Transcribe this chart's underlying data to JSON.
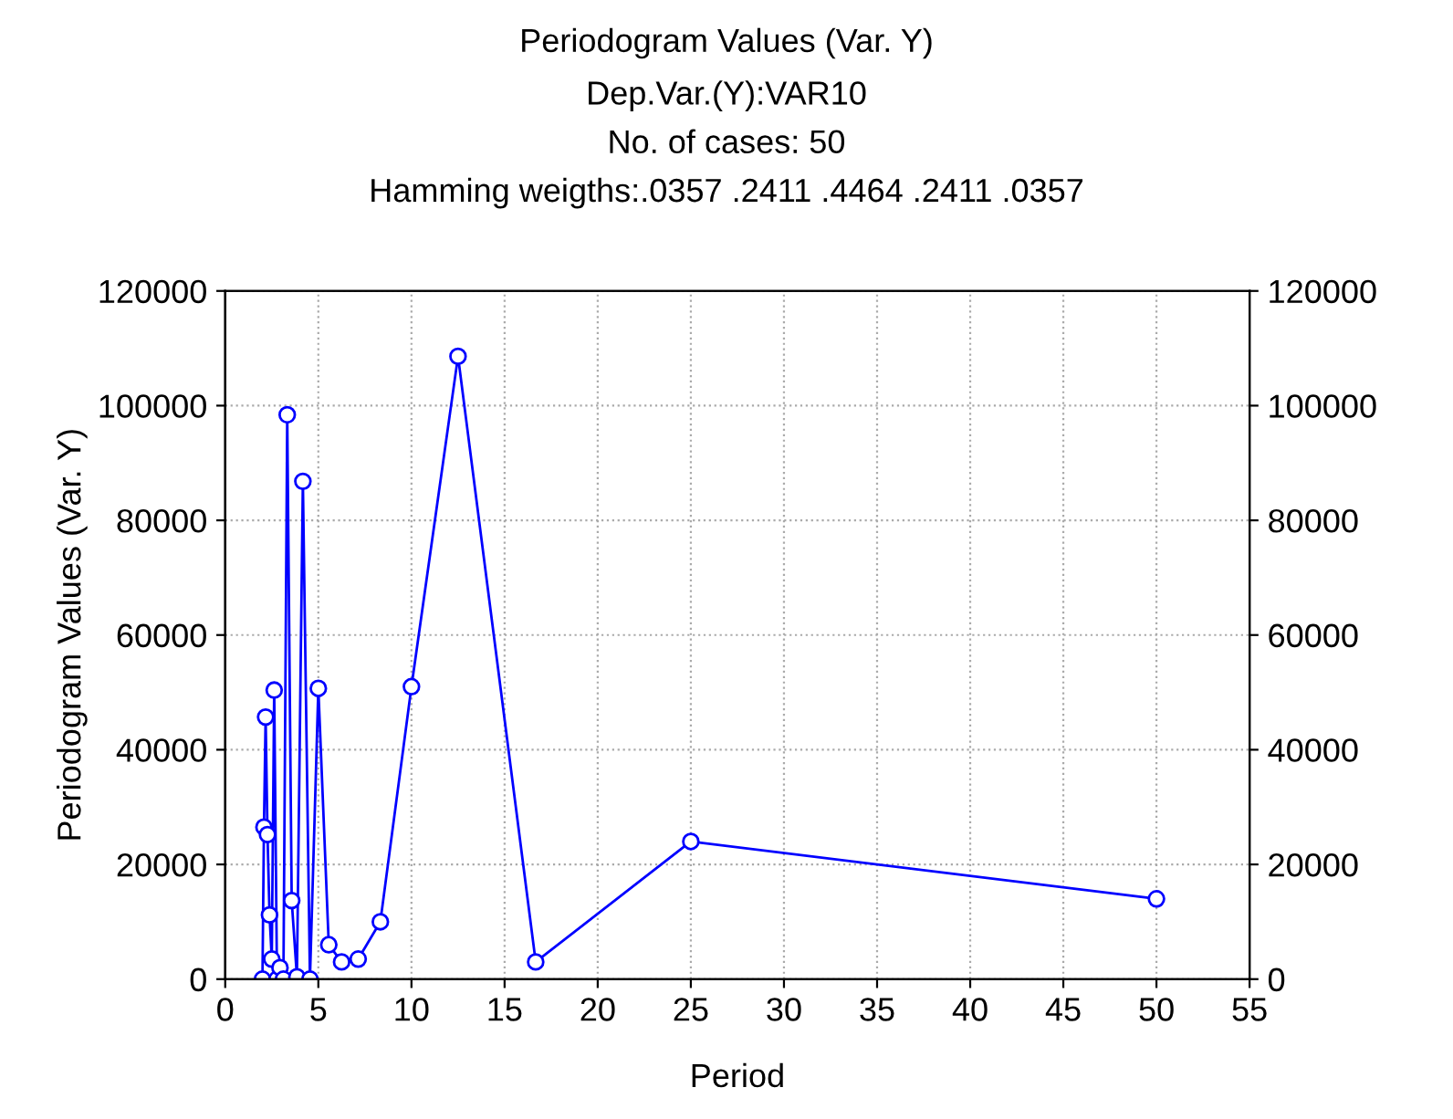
{
  "chart_data": {
    "type": "line",
    "title": "Periodogram Values (Var. Y)",
    "subtitle": "Dep.Var.(Y):VAR10\nNo. of cases: 50\nHamming weigths:.0357 .2411 .4464 .2411 .0357",
    "xlabel": "Period",
    "ylabel": "Periodogram Values (Var. Y)",
    "x": [
      2.0,
      2.08,
      2.17,
      2.27,
      2.38,
      2.5,
      2.63,
      2.78,
      2.94,
      3.125,
      3.33,
      3.57,
      3.85,
      4.17,
      4.55,
      5.0,
      5.56,
      6.25,
      7.14,
      8.33,
      10,
      12.5,
      16.67,
      25,
      50
    ],
    "series": [
      {
        "color": "#0000ff",
        "values": [
          0,
          26500,
          45700,
          25200,
          11200,
          3500,
          50400,
          0,
          2000,
          0,
          98400,
          13700,
          400,
          86800,
          0,
          50700,
          6000,
          3000,
          3500,
          10000,
          51000,
          108600,
          3000,
          24000,
          14000
        ]
      }
    ],
    "xlim": [
      0,
      55
    ],
    "xticks": [
      0,
      5,
      10,
      15,
      20,
      25,
      30,
      35,
      40,
      45,
      50,
      55
    ],
    "ylim": [
      0,
      120000
    ],
    "yticks": [
      0,
      20000,
      40000,
      60000,
      80000,
      100000,
      120000
    ],
    "y2lim": [
      0,
      120000
    ],
    "y2ticks": [
      0,
      20000,
      40000,
      60000,
      80000,
      100000,
      120000
    ],
    "grid": true,
    "marker": "circle",
    "line_style": "solid"
  }
}
